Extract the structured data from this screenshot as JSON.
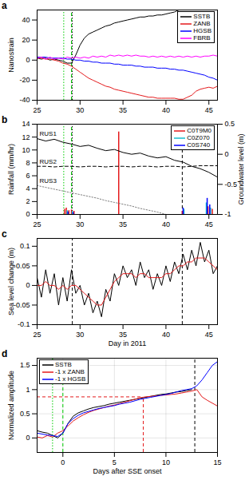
{
  "chart_data": [
    {
      "type": "line",
      "panel_label": "a",
      "ylabel": "Nanostrain",
      "legend": "upper right",
      "xlim": [
        25,
        46
      ],
      "xticks": [
        25,
        30,
        35,
        40,
        45
      ],
      "ylim": [
        -40,
        50
      ],
      "yticks": [
        -40,
        -20,
        0,
        20,
        40
      ],
      "x": [
        25,
        25.5,
        26,
        26.5,
        27,
        27.5,
        28,
        28.5,
        29,
        29.5,
        30,
        30.5,
        31,
        31.5,
        32,
        32.5,
        33,
        33.5,
        34,
        34.5,
        35,
        35.5,
        36,
        36.5,
        37,
        37.5,
        38,
        38.5,
        39,
        39.5,
        40,
        40.5,
        41,
        41.5,
        42,
        42.5,
        43,
        43.5,
        44,
        44.5,
        45,
        45.5,
        46
      ],
      "series": [
        {
          "name": "SSTB",
          "color": "#000000",
          "values": [
            2,
            1,
            2,
            0,
            1,
            0,
            -1,
            -3,
            -3,
            5,
            15,
            22,
            26,
            28,
            30,
            32,
            34,
            35,
            37,
            38,
            39,
            40,
            41,
            42,
            43,
            43,
            44,
            44,
            45,
            45,
            46,
            47,
            48,
            50,
            null,
            null,
            null,
            null,
            null,
            null,
            null,
            null,
            null
          ]
        },
        {
          "name": "ZANB",
          "color": "#e41a1c",
          "values": [
            2,
            2,
            1,
            1,
            0,
            -1,
            -3,
            -4,
            -6,
            -9,
            -12,
            -15,
            -18,
            -20,
            -22,
            -24,
            -26,
            -27,
            -29,
            -30,
            -31,
            -32,
            -33,
            -34,
            -35,
            -36,
            -37,
            -37,
            -38,
            -38,
            -38,
            -38,
            -38,
            -39,
            -39,
            -37,
            -35,
            -31,
            -29,
            -28,
            -27,
            -28,
            -26
          ]
        },
        {
          "name": "HGSB",
          "color": "#0000ff",
          "values": [
            3,
            3,
            3,
            2,
            2,
            2,
            2,
            1,
            1,
            0,
            0,
            -1,
            -1,
            -2,
            -2,
            -3,
            -3,
            -3,
            -4,
            -4,
            -5,
            -5,
            -5,
            -6,
            -6,
            -7,
            -7,
            -7,
            -8,
            -8,
            -8,
            -9,
            -9,
            -10,
            -10,
            -11,
            -12,
            -13,
            -14,
            -15,
            -17,
            -18,
            -20
          ]
        },
        {
          "name": "FBRB",
          "color": "#ff00ff",
          "values": [
            2,
            3,
            1,
            3,
            1,
            2,
            1,
            3,
            2,
            3,
            2,
            3,
            2,
            4,
            3,
            4,
            3,
            5,
            4,
            5,
            4,
            5,
            4,
            5,
            4,
            4,
            3,
            4,
            3,
            4,
            3,
            4,
            3,
            4,
            3,
            4,
            3,
            4,
            3,
            4,
            4,
            5,
            4
          ]
        }
      ],
      "vlines": [
        {
          "value": 28.1,
          "color": "#00cc00",
          "line_style": "dotted"
        },
        {
          "value": 29.0,
          "color": "#00cc00",
          "line_style": "dashed"
        },
        {
          "value": 29.1,
          "color": "#000000",
          "line_style": "dotted"
        }
      ]
    },
    {
      "type": "line",
      "panel_label": "b",
      "ylabel": "Rainfall (mm/hr)",
      "y2label": "Groundwater level (m)",
      "legend": "upper right",
      "xlim": [
        25,
        46
      ],
      "xticks": [
        25,
        30,
        35,
        40,
        45
      ],
      "ylim": [
        0,
        14
      ],
      "yticks": [
        0,
        2,
        4,
        6,
        8,
        10,
        12,
        14
      ],
      "y2lim": [
        -1,
        0.5
      ],
      "y2ticks": [
        -1,
        -0.5,
        0,
        0.5
      ],
      "series": [
        {
          "name": "C0T9M0",
          "type": "bar",
          "color": "#e41a1c",
          "x": [
            28.2,
            28.4,
            28.7,
            29.0,
            29.3,
            34.5,
            41.9,
            44.9,
            45.4
          ],
          "values": [
            0.8,
            1.0,
            0.6,
            0.7,
            0.5,
            12.8,
            0.5,
            1.2,
            0.8
          ]
        },
        {
          "name": "C0Z070",
          "type": "bar",
          "color": "#17becf",
          "x": [
            28.5,
            29.1,
            42.1,
            44.7,
            45.2
          ],
          "values": [
            0.6,
            0.5,
            0.8,
            1.8,
            1.0
          ]
        },
        {
          "name": "C0S740",
          "type": "bar",
          "color": "#0000ff",
          "x": [
            28.6,
            29.2,
            42.0,
            44.8,
            45.1
          ],
          "values": [
            0.4,
            0.3,
            1.0,
            2.5,
            1.5
          ]
        },
        {
          "name": "RUS1",
          "type": "line",
          "axis": "y2",
          "color": "#000000",
          "line_style": "solid",
          "x": [
            25,
            26,
            27,
            28,
            29,
            30,
            31,
            32,
            33,
            34,
            35,
            36,
            37,
            38,
            39,
            40,
            41,
            42,
            43,
            44,
            45,
            46
          ],
          "values": [
            0.26,
            0.22,
            0.25,
            0.2,
            0.17,
            0.13,
            0.15,
            0.1,
            0.06,
            0.08,
            0.03,
            0,
            0.02,
            -0.03,
            -0.06,
            -0.04,
            -0.1,
            -0.13,
            -0.2,
            -0.24,
            -0.3,
            -0.38
          ]
        },
        {
          "name": "RUS2",
          "type": "line",
          "axis": "y2",
          "color": "#000000",
          "line_style": "dashed",
          "x": [
            25,
            26,
            27,
            28,
            29,
            30,
            31,
            32,
            33,
            34,
            35,
            36,
            37,
            38,
            39,
            40,
            41,
            42,
            43,
            44,
            45,
            46
          ],
          "values": [
            -0.2,
            -0.2,
            -0.21,
            -0.2,
            -0.2,
            -0.21,
            -0.2,
            -0.2,
            -0.21,
            -0.2,
            -0.2,
            -0.21,
            -0.2,
            -0.2,
            -0.21,
            -0.2,
            -0.2,
            -0.21,
            -0.2,
            -0.19,
            -0.19,
            -0.19
          ]
        },
        {
          "name": "RUS3",
          "type": "line",
          "axis": "y2",
          "color": "#808080",
          "line_style": "dotted",
          "x": [
            25,
            26,
            27,
            28,
            29,
            30,
            31,
            32,
            33,
            34,
            35,
            36,
            37,
            38,
            39,
            40,
            41,
            42,
            43,
            44,
            45,
            46
          ],
          "values": [
            -0.52,
            -0.55,
            -0.58,
            -0.61,
            -0.64,
            -0.67,
            -0.7,
            -0.73,
            -0.77,
            -0.8,
            -0.83,
            -0.86,
            -0.9,
            -0.93,
            -0.96,
            -1,
            null,
            null,
            null,
            null,
            null,
            null
          ]
        }
      ],
      "vlines": [
        {
          "value": 28.1,
          "color": "#00cc00",
          "line_style": "dotted"
        },
        {
          "value": 29.0,
          "color": "#00cc00",
          "line_style": "dashed"
        },
        {
          "value": 29.1,
          "color": "#000000",
          "line_style": "dotted"
        },
        {
          "value": 41.9,
          "color": "#000000",
          "line_style": "dashed"
        }
      ]
    },
    {
      "type": "line",
      "panel_label": "c",
      "ylabel": "Sea level change (m)",
      "xlabel": "Day in 2011",
      "xlim": [
        25,
        46
      ],
      "xticks": [
        25,
        30,
        35,
        40,
        45
      ],
      "ylim": [
        -0.1,
        0.12
      ],
      "yticks": [
        -0.1,
        -0.05,
        0,
        0.05,
        0.1
      ],
      "x": [
        25,
        25.5,
        26,
        26.5,
        27,
        27.5,
        28,
        28.5,
        29,
        29.5,
        30,
        30.5,
        31,
        31.5,
        32,
        32.5,
        33,
        33.5,
        34,
        34.5,
        35,
        35.5,
        36,
        36.5,
        37,
        37.5,
        38,
        38.5,
        39,
        39.5,
        40,
        40.5,
        41,
        41.5,
        42,
        42.5,
        43,
        43.5,
        44,
        44.5,
        45,
        45.5,
        46
      ],
      "series": [
        {
          "color": "#000000",
          "values": [
            0.02,
            -0.03,
            0.04,
            -0.02,
            0.03,
            -0.05,
            0.02,
            -0.04,
            0.04,
            -0.02,
            0,
            -0.05,
            -0.02,
            -0.07,
            -0.04,
            -0.08,
            -0.01,
            -0.04,
            0.03,
            0,
            0.05,
            0.02,
            0.04,
            0,
            0.06,
            0.02,
            0.04,
            -0.01,
            0.03,
            0,
            0.05,
            0.01,
            0.06,
            0.03,
            0.08,
            0.04,
            0.09,
            0.05,
            0.11,
            0.06,
            0.09,
            0.03,
            0.05
          ]
        },
        {
          "color": "#e41a1c",
          "values": [
            0,
            0,
            0.01,
            0,
            0,
            -0.01,
            0,
            -0.01,
            0,
            0,
            -0.01,
            -0.02,
            -0.03,
            -0.04,
            -0.05,
            -0.05,
            -0.03,
            -0.01,
            0.01,
            0.02,
            0.03,
            0.03,
            0.03,
            0.02,
            0.03,
            0.03,
            0.02,
            0.02,
            0.02,
            0.02,
            0.03,
            0.03,
            0.04,
            0.05,
            0.05,
            0.06,
            0.06,
            0.07,
            0.07,
            0.07,
            0.06,
            0.05,
            0.04
          ]
        }
      ],
      "vlines": [
        {
          "value": 29.1,
          "color": "#000000",
          "line_style": "dashed"
        },
        {
          "value": 41.9,
          "color": "#000000",
          "line_style": "dashed"
        }
      ]
    },
    {
      "type": "line",
      "panel_label": "d",
      "ylabel": "Normalized amplitude",
      "xlabel": "Days after SSE onset",
      "legend": "upper left",
      "grid": true,
      "xlim": [
        -2.5,
        15
      ],
      "xticks": [
        0,
        5,
        10,
        15
      ],
      "ylim": [
        -0.3,
        1.65
      ],
      "yticks": [
        0,
        0.5,
        1,
        1.5
      ],
      "x": [
        -2.5,
        -2,
        -1.5,
        -1,
        -0.5,
        0,
        0.5,
        1,
        1.5,
        2,
        2.5,
        3,
        3.5,
        4,
        4.5,
        5,
        5.5,
        6,
        6.5,
        7,
        7.5,
        8,
        8.5,
        9,
        9.5,
        10,
        10.5,
        11,
        11.5,
        12,
        12.5,
        13,
        13.5,
        14,
        14.5,
        15
      ],
      "series": [
        {
          "name": "SSTB",
          "color": "#000000",
          "values": [
            0.15,
            0.12,
            0.1,
            0.05,
            0,
            0.1,
            0.3,
            0.45,
            0.52,
            0.56,
            0.6,
            0.63,
            0.65,
            0.67,
            0.7,
            0.72,
            0.74,
            0.76,
            0.78,
            0.8,
            0.82,
            0.84,
            0.86,
            0.88,
            0.9,
            0.91,
            0.93,
            0.95,
            0.96,
            0.98,
            1.0,
            null,
            null,
            null,
            null,
            null
          ]
        },
        {
          "name": "-1 x ZANB",
          "color": "#e41a1c",
          "values": [
            0.02,
            0,
            0.05,
            0.02,
            0.1,
            0.15,
            0.25,
            0.35,
            0.42,
            0.48,
            0.53,
            0.57,
            0.6,
            0.63,
            0.66,
            0.68,
            0.71,
            0.74,
            0.77,
            0.8,
            0.83,
            0.85,
            0.86,
            0.87,
            0.88,
            0.89,
            0.9,
            0.91,
            0.93,
            0.95,
            0.97,
            1.0,
            0.85,
            0.78,
            0.72,
            0.66
          ]
        },
        {
          "name": "-1 x HGSB",
          "color": "#0000ff",
          "values": [
            0.1,
            0.08,
            0.06,
            0.05,
            0.03,
            0.1,
            0.3,
            0.4,
            0.47,
            0.52,
            0.55,
            0.58,
            0.61,
            0.63,
            0.65,
            0.67,
            0.7,
            0.72,
            0.74,
            0.77,
            0.8,
            0.82,
            0.84,
            0.86,
            0.88,
            0.9,
            0.92,
            0.95,
            0.98,
            1.0,
            1.02,
            1.08,
            1.2,
            1.35,
            1.5,
            1.58
          ]
        }
      ],
      "vlines": [
        {
          "value": -1,
          "color": "#00cc00",
          "line_style": "dotted"
        },
        {
          "value": 0,
          "color": "#00cc00",
          "line_style": "dashed"
        },
        {
          "value": 7.8,
          "color": "#e41a1c",
          "line_style": "dashed",
          "y_end": 0.85
        },
        {
          "value": 12.8,
          "color": "#000000",
          "line_style": "dashed"
        }
      ],
      "hlines": [
        {
          "value": 0.85,
          "color": "#e41a1c",
          "line_style": "dashed",
          "x_end": 7.8
        }
      ]
    }
  ]
}
